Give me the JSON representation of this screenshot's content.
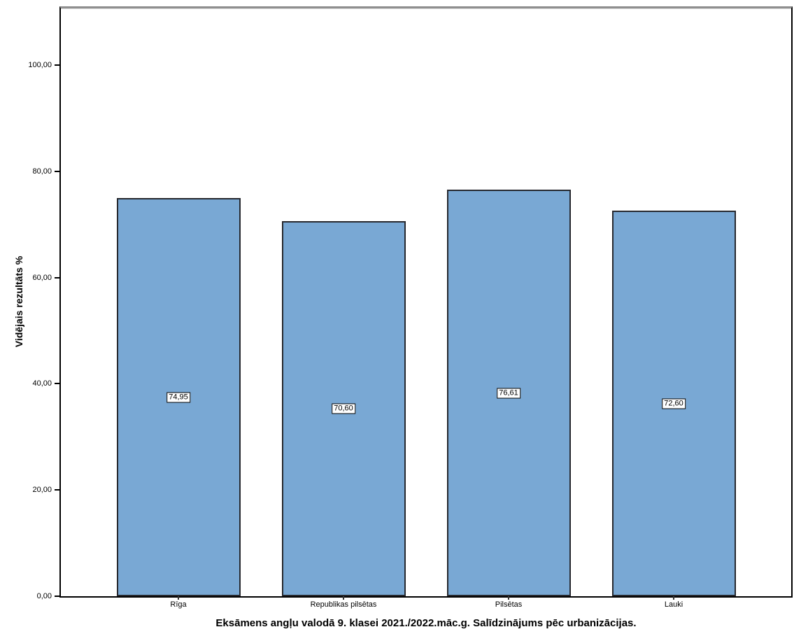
{
  "chart_data": {
    "type": "bar",
    "title": "Eksāmens angļu valodā 9. klasei 2021./2022.māc.g. Salīdzinājums pēc urbanizācijas.",
    "ylabel": "Vidējais rezultāts %",
    "xlabel": "",
    "categories": [
      "Rīga",
      "Republikas pilsētas",
      "Pilsētas",
      "Lauki"
    ],
    "values": [
      74.95,
      70.6,
      76.61,
      72.6
    ],
    "value_labels": [
      "74,95",
      "70,60",
      "76,61",
      "72,60"
    ],
    "value_label_position": "bar-middle",
    "ytick_values": [
      0,
      20,
      40,
      60,
      80,
      100
    ],
    "ytick_labels": [
      "0,00",
      "20,00",
      "40,00",
      "60,00",
      "80,00",
      "100,00"
    ],
    "ylim": [
      0,
      110.7
    ],
    "grid": false,
    "legend": false,
    "colors": {
      "bar_fill": "#79a8d4",
      "bar_border": "#26282e",
      "axis_line": "#000000",
      "frame_top": "#8f8f8f",
      "tick_mark": "#333333",
      "value_box_bg": "#ffffff",
      "value_box_border": "#000000",
      "text": "#000000",
      "background": "#ffffff"
    }
  }
}
